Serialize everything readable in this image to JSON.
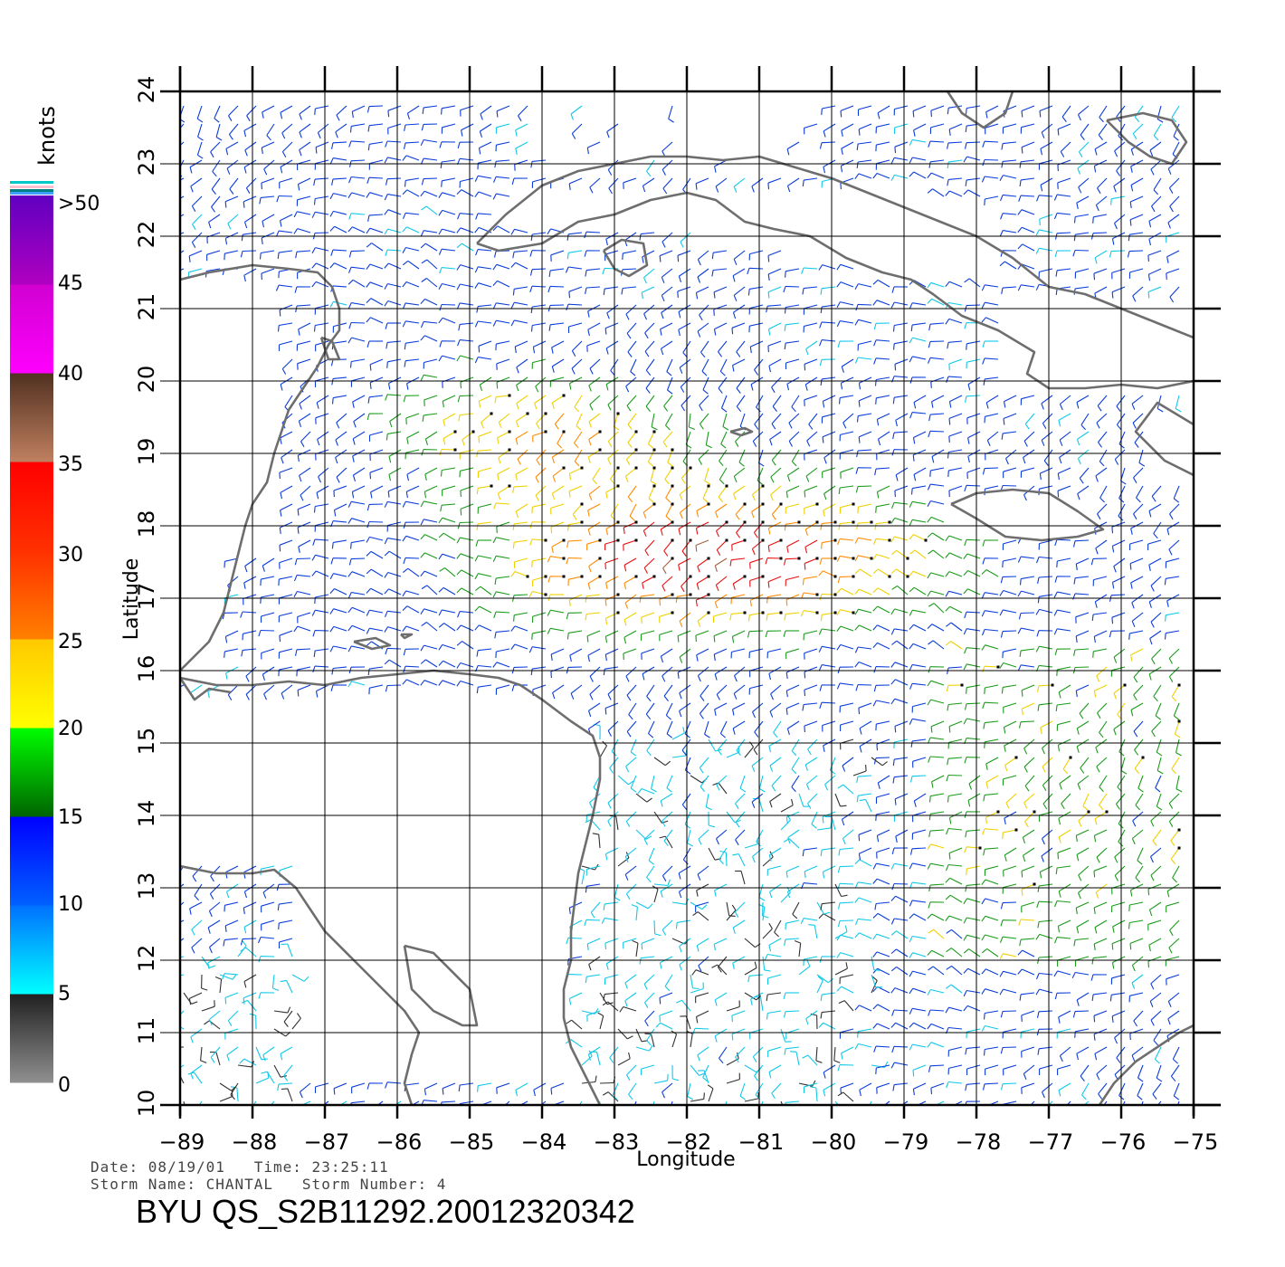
{
  "map": {
    "xlabel": "Longitude",
    "ylabel": "Latitude",
    "lon_range": [
      -89,
      -75
    ],
    "lat_range": [
      10,
      24
    ],
    "lon_ticks": [
      "-89",
      "-88",
      "-87",
      "-86",
      "-85",
      "-84",
      "-83",
      "-82",
      "-81",
      "-80",
      "-79",
      "-78",
      "-77",
      "-76",
      "-75"
    ],
    "lat_ticks": [
      "10",
      "11",
      "12",
      "13",
      "14",
      "15",
      "16",
      "17",
      "18",
      "19",
      "20",
      "21",
      "22",
      "23",
      "24"
    ],
    "coast_color": "#6e6e6e",
    "grid_color": "#000000"
  },
  "colorbar": {
    "unit": "knots",
    "labels": [
      ">50",
      "45",
      "40",
      "35",
      "30",
      "25",
      "20",
      "15",
      "10",
      "5",
      "0"
    ],
    "bands": [
      {
        "from": 0,
        "to": 5,
        "colors": [
          "#909090",
          "#202020"
        ]
      },
      {
        "from": 5,
        "to": 10,
        "colors": [
          "#00ffff",
          "#0070ff"
        ]
      },
      {
        "from": 10,
        "to": 15,
        "colors": [
          "#0060ff",
          "#0000ff"
        ]
      },
      {
        "from": 15,
        "to": 20,
        "colors": [
          "#006400",
          "#00ff00"
        ]
      },
      {
        "from": 20,
        "to": 25,
        "colors": [
          "#ffff00",
          "#ffc800"
        ]
      },
      {
        "from": 25,
        "to": 30,
        "colors": [
          "#ff8000",
          "#ff3000"
        ]
      },
      {
        "from": 30,
        "to": 35,
        "colors": [
          "#ff3000",
          "#ff0000"
        ]
      },
      {
        "from": 35,
        "to": 40,
        "colors": [
          "#c08060",
          "#503020"
        ]
      },
      {
        "from": 40,
        "to": 45,
        "colors": [
          "#ff00ff",
          "#d000d0"
        ]
      },
      {
        "from": 45,
        "to": 50,
        "colors": [
          "#b000c0",
          "#6000c0"
        ]
      }
    ]
  },
  "footer": {
    "date_line": "Date: 08/19/01   Time: 23:25:11",
    "storm_line": "Storm Name: CHANTAL   Storm Number: 4",
    "title": "BYU QS_S2B11292.20012320342"
  }
}
